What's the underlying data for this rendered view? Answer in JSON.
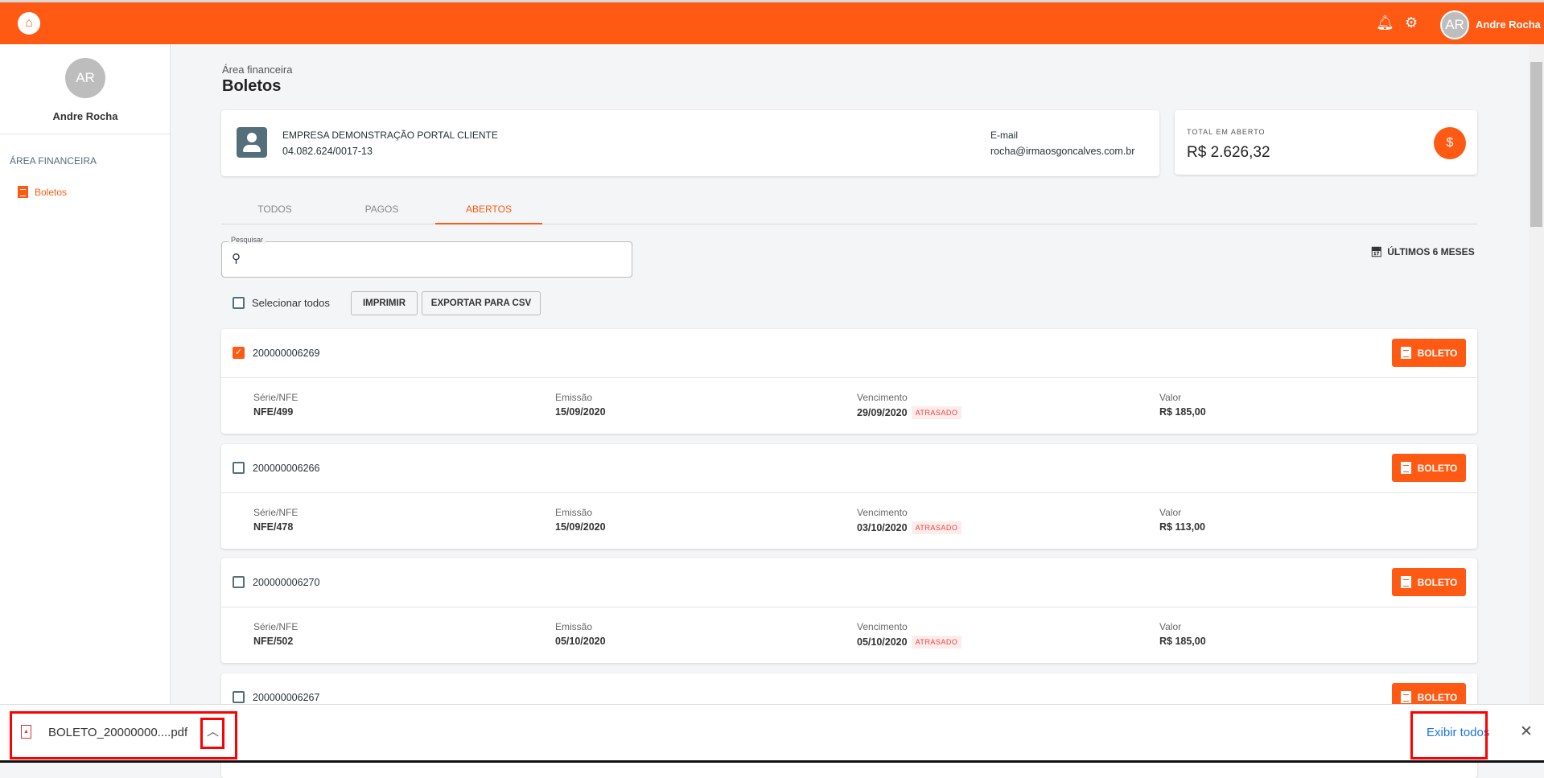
{
  "topbar": {
    "logo_icon": "house-logo-icon",
    "user_initials": "AR",
    "user_name": "Andre Rocha",
    "brand_color": "#ff5a14"
  },
  "sidebar": {
    "initials": "AR",
    "name": "Andre Rocha",
    "section": "ÁREA FINANCEIRA",
    "items": [
      {
        "label": "Boletos",
        "icon": "document-icon"
      }
    ]
  },
  "header": {
    "breadcrumb": "Área financeira",
    "title": "Boletos"
  },
  "company": {
    "name": "EMPRESA DEMONSTRAÇÃO PORTAL CLIENTE",
    "cnpj": "04.082.624/0017-13",
    "email_label": "E-mail",
    "email": "rocha@irmaosgoncalves.com.br"
  },
  "total": {
    "label": "TOTAL EM ABERTO",
    "value": "R$ 2.626,32",
    "icon": "$"
  },
  "tabs": [
    {
      "label": "TODOS"
    },
    {
      "label": "PAGOS"
    },
    {
      "label": "ABERTOS",
      "active": true
    }
  ],
  "search": {
    "label": "Pesquisar",
    "value": ""
  },
  "range": "ÚLTIMOS 6 MESES",
  "actions": {
    "select_all": "Selecionar todos",
    "print": "IMPRIMIR",
    "export": "EXPORTAR PARA CSV"
  },
  "columns": {
    "serie": "Série/NFE",
    "emissao": "Emissão",
    "vencimento": "Vencimento",
    "valor": "Valor"
  },
  "boleto_label": "BOLETO",
  "rows": [
    {
      "id": "200000006269",
      "checked": true,
      "serie": "NFE/499",
      "emissao": "15/09/2020",
      "vencimento": "29/09/2020",
      "status": "ATRASADO",
      "valor": "R$ 185,00"
    },
    {
      "id": "200000006266",
      "checked": false,
      "serie": "NFE/478",
      "emissao": "15/09/2020",
      "vencimento": "03/10/2020",
      "status": "ATRASADO",
      "valor": "R$ 113,00"
    },
    {
      "id": "200000006270",
      "checked": false,
      "serie": "NFE/502",
      "emissao": "05/10/2020",
      "vencimento": "05/10/2020",
      "status": "ATRASADO",
      "valor": "R$ 185,00"
    },
    {
      "id": "200000006267",
      "checked": false
    }
  ],
  "download": {
    "filename": "BOLETO_20000000....pdf",
    "show_all": "Exibir todos"
  }
}
